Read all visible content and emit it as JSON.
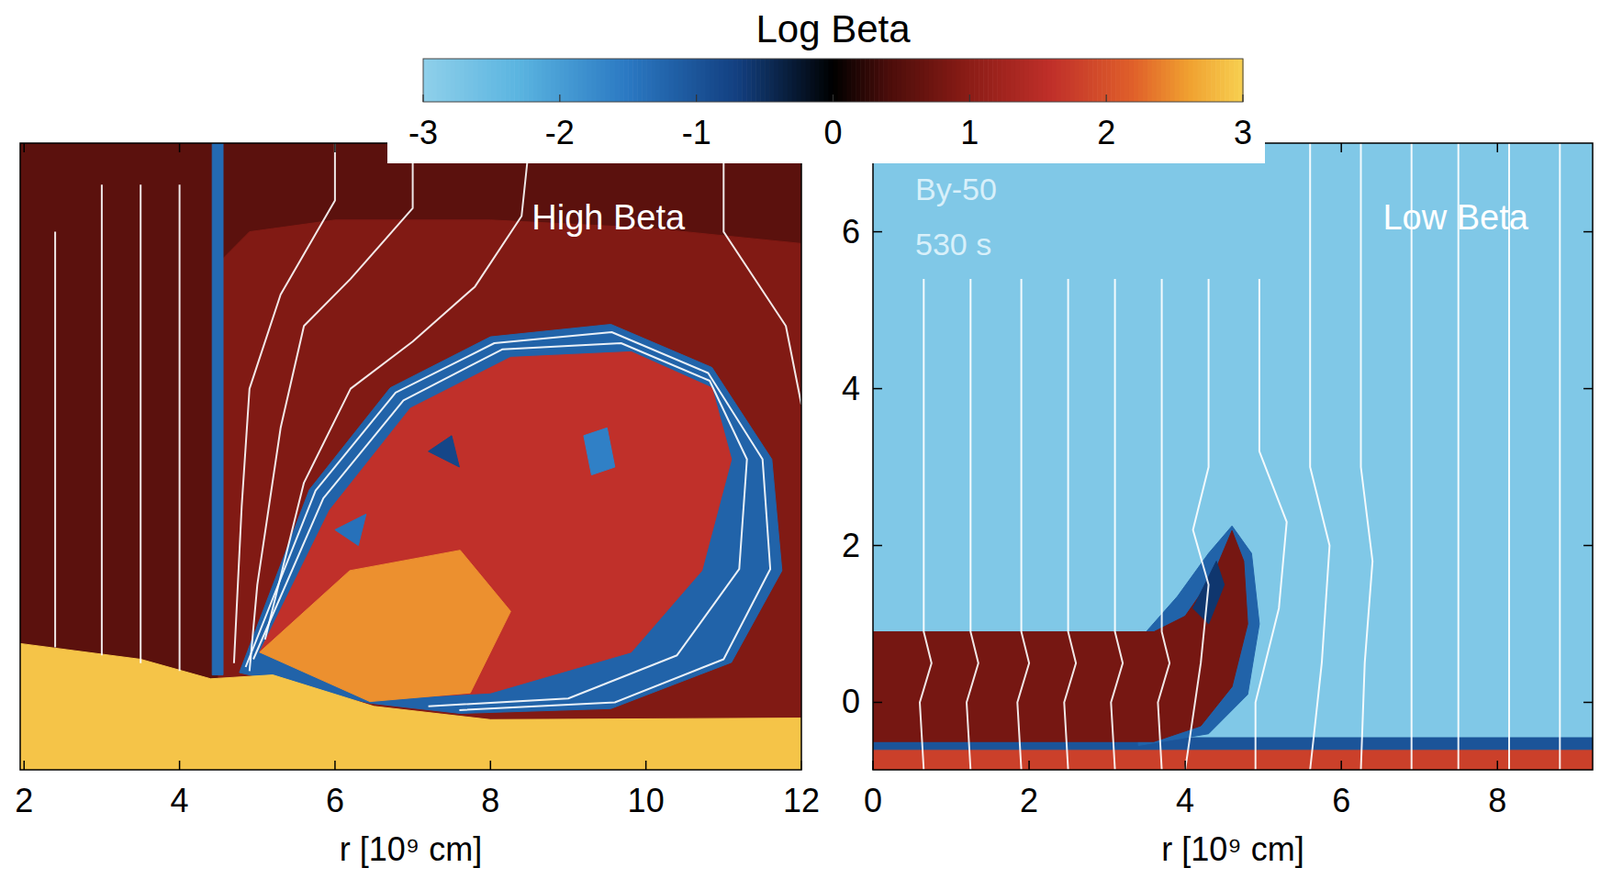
{
  "colorbar": {
    "title": "Log Beta",
    "range": [
      -3,
      3
    ],
    "ticks": [
      -3,
      -2,
      -1,
      0,
      1,
      2,
      3
    ]
  },
  "chart_data": [
    {
      "type": "heatmap",
      "title": "High Beta",
      "xlabel": "r [10⁹ cm]",
      "xlim": [
        1.95,
        12
      ],
      "xticks": [
        2,
        4,
        6,
        8,
        10,
        12
      ],
      "ylim": [
        -0.86,
        7.13
      ],
      "tick_labels": "x",
      "background": 0.55,
      "regions": [
        {
          "value": 0.9,
          "points": [
            [
              4.5,
              5.6
            ],
            [
              4.9,
              6.0
            ],
            [
              6,
              6.15
            ],
            [
              8,
              6.15
            ],
            [
              10,
              6.05
            ],
            [
              12,
              5.85
            ],
            [
              12,
              -0.86
            ],
            [
              4.5,
              -0.86
            ]
          ]
        },
        {
          "value": -1.3,
          "points": [
            [
              4.42,
              7.13
            ],
            [
              4.56,
              7.13
            ],
            [
              4.56,
              0.35
            ],
            [
              4.42,
              0.35
            ]
          ]
        },
        {
          "value": -1.2,
          "points": [
            [
              4.77,
              0.38
            ],
            [
              5.67,
              2.71
            ],
            [
              6.71,
              4.01
            ],
            [
              8.0,
              4.66
            ],
            [
              9.55,
              4.82
            ],
            [
              10.85,
              4.27
            ],
            [
              11.62,
              3.1
            ],
            [
              11.75,
              1.68
            ],
            [
              11.1,
              0.51
            ],
            [
              9.55,
              -0.08
            ],
            [
              7.61,
              -0.14
            ],
            [
              6.45,
              -0.01
            ]
          ]
        },
        {
          "value": 1.6,
          "points": [
            [
              5.03,
              0.64
            ],
            [
              5.93,
              2.45
            ],
            [
              6.97,
              3.75
            ],
            [
              8.26,
              4.4
            ],
            [
              9.81,
              4.47
            ],
            [
              10.85,
              4.01
            ],
            [
              11.1,
              3.1
            ],
            [
              10.72,
              1.68
            ],
            [
              9.81,
              0.64
            ],
            [
              8.0,
              0.12
            ],
            [
              6.71,
              0.05
            ]
          ]
        },
        {
          "value": 2.5,
          "points": [
            [
              5.03,
              0.64
            ],
            [
              6.19,
              1.68
            ],
            [
              7.61,
              1.94
            ],
            [
              8.26,
              1.16
            ],
            [
              7.74,
              0.12
            ],
            [
              6.45,
              0.01
            ]
          ]
        },
        {
          "value": -1.6,
          "points": [
            [
              9.2,
              3.4
            ],
            [
              9.5,
              3.5
            ],
            [
              9.6,
              3.0
            ],
            [
              9.3,
              2.9
            ]
          ]
        },
        {
          "value": -1.4,
          "points": [
            [
              6.0,
              2.2
            ],
            [
              6.4,
              2.4
            ],
            [
              6.3,
              2.0
            ]
          ]
        },
        {
          "value": -0.8,
          "points": [
            [
              7.2,
              3.2
            ],
            [
              7.5,
              3.4
            ],
            [
              7.6,
              3.0
            ]
          ]
        },
        {
          "value": 2.9,
          "points": [
            [
              1.95,
              -0.86
            ],
            [
              12,
              -0.86
            ],
            [
              12,
              -0.2
            ],
            [
              8,
              -0.22
            ],
            [
              6.5,
              -0.05
            ],
            [
              5.2,
              0.35
            ],
            [
              4.4,
              0.3
            ],
            [
              3.5,
              0.55
            ],
            [
              1.95,
              0.75
            ]
          ]
        }
      ],
      "field_lines": [
        [
          [
            2.4,
            6.0
          ],
          [
            2.4,
            0.7
          ]
        ],
        [
          [
            3.0,
            6.6
          ],
          [
            3.0,
            0.6
          ]
        ],
        [
          [
            3.5,
            6.6
          ],
          [
            3.5,
            0.5
          ]
        ],
        [
          [
            4.0,
            6.6
          ],
          [
            4.0,
            0.4
          ]
        ],
        [
          [
            6.0,
            7.13
          ],
          [
            6.0,
            6.4
          ],
          [
            5.3,
            5.2
          ],
          [
            4.9,
            4.0
          ],
          [
            4.8,
            2.5
          ],
          [
            4.7,
            0.5
          ]
        ],
        [
          [
            7.0,
            7.13
          ],
          [
            7.0,
            6.3
          ],
          [
            6.2,
            5.4
          ],
          [
            5.6,
            4.8
          ],
          [
            5.3,
            3.5
          ],
          [
            5.0,
            1.5
          ],
          [
            4.9,
            0.4
          ]
        ],
        [
          [
            8.5,
            7.13
          ],
          [
            8.4,
            6.2
          ],
          [
            7.8,
            5.3
          ],
          [
            7.0,
            4.6
          ],
          [
            6.2,
            4.0
          ],
          [
            5.6,
            2.8
          ],
          [
            5.1,
            0.8
          ]
        ],
        [
          [
            11.0,
            7.13
          ],
          [
            11.0,
            6.0
          ],
          [
            11.8,
            4.8
          ],
          [
            12.0,
            3.8
          ]
        ],
        [
          [
            4.85,
            0.45
          ],
          [
            5.75,
            2.7
          ],
          [
            6.78,
            3.95
          ],
          [
            8.05,
            4.58
          ],
          [
            9.56,
            4.72
          ],
          [
            10.8,
            4.2
          ],
          [
            11.5,
            3.1
          ],
          [
            11.6,
            1.7
          ],
          [
            11.0,
            0.55
          ],
          [
            9.6,
            0.0
          ],
          [
            7.6,
            -0.1
          ]
        ],
        [
          [
            4.95,
            0.55
          ],
          [
            5.85,
            2.6
          ],
          [
            6.88,
            3.85
          ],
          [
            8.15,
            4.5
          ],
          [
            9.68,
            4.58
          ],
          [
            10.82,
            4.1
          ],
          [
            11.3,
            3.1
          ],
          [
            11.2,
            1.7
          ],
          [
            10.4,
            0.6
          ],
          [
            9.0,
            0.05
          ],
          [
            7.2,
            -0.05
          ]
        ]
      ]
    },
    {
      "type": "heatmap",
      "title": "Low Beta",
      "annotations": [
        "By-50",
        "530 s"
      ],
      "xlabel": "r [10⁹ cm]",
      "xlim": [
        0,
        9.22
      ],
      "xticks": [
        0,
        2,
        4,
        6,
        8
      ],
      "ylim": [
        -0.86,
        7.13
      ],
      "yticks": [
        0,
        2,
        4,
        6
      ],
      "background": -2.8,
      "regions": [
        {
          "value": 1.8,
          "points": [
            [
              0,
              -0.6
            ],
            [
              9.22,
              -0.6
            ],
            [
              9.22,
              -0.86
            ],
            [
              0,
              -0.86
            ]
          ]
        },
        {
          "value": -1.0,
          "points": [
            [
              0,
              -0.45
            ],
            [
              9.22,
              -0.45
            ],
            [
              9.22,
              -0.6
            ],
            [
              0,
              -0.6
            ]
          ]
        },
        {
          "value": -1.2,
          "points": [
            [
              3.5,
              0.9
            ],
            [
              3.9,
              1.35
            ],
            [
              4.3,
              1.9
            ],
            [
              4.6,
              2.25
            ],
            [
              4.85,
              1.9
            ],
            [
              4.95,
              1.0
            ],
            [
              4.8,
              0.1
            ],
            [
              4.3,
              -0.4
            ],
            [
              3.4,
              -0.55
            ],
            [
              3.4,
              0.9
            ]
          ]
        },
        {
          "value": 0.8,
          "points": [
            [
              0,
              0.9
            ],
            [
              3.6,
              0.9
            ],
            [
              4.0,
              1.1
            ],
            [
              4.35,
              1.6
            ],
            [
              4.6,
              2.19
            ],
            [
              4.75,
              1.8
            ],
            [
              4.8,
              1.0
            ],
            [
              4.6,
              0.2
            ],
            [
              4.2,
              -0.3
            ],
            [
              3.6,
              -0.5
            ],
            [
              0,
              -0.5
            ]
          ]
        },
        {
          "value": -0.6,
          "points": [
            [
              4.1,
              1.2
            ],
            [
              4.4,
              1.8
            ],
            [
              4.5,
              1.5
            ],
            [
              4.3,
              1.0
            ]
          ]
        }
      ],
      "field_lines": [
        [
          [
            0.65,
            5.4
          ],
          [
            0.65,
            0.9
          ],
          [
            0.75,
            0.5
          ],
          [
            0.6,
            0
          ],
          [
            0.65,
            -0.86
          ]
        ],
        [
          [
            1.25,
            5.4
          ],
          [
            1.25,
            0.9
          ],
          [
            1.35,
            0.5
          ],
          [
            1.2,
            0
          ],
          [
            1.25,
            -0.86
          ]
        ],
        [
          [
            1.9,
            5.4
          ],
          [
            1.9,
            0.9
          ],
          [
            2.0,
            0.5
          ],
          [
            1.85,
            0
          ],
          [
            1.9,
            -0.86
          ]
        ],
        [
          [
            2.5,
            5.4
          ],
          [
            2.5,
            0.9
          ],
          [
            2.6,
            0.5
          ],
          [
            2.45,
            0
          ],
          [
            2.5,
            -0.86
          ]
        ],
        [
          [
            3.1,
            5.4
          ],
          [
            3.1,
            0.9
          ],
          [
            3.2,
            0.5
          ],
          [
            3.05,
            0
          ],
          [
            3.1,
            -0.86
          ]
        ],
        [
          [
            3.7,
            5.4
          ],
          [
            3.7,
            0.9
          ],
          [
            3.8,
            0.5
          ],
          [
            3.65,
            0
          ],
          [
            3.7,
            -0.86
          ]
        ],
        [
          [
            4.3,
            5.4
          ],
          [
            4.3,
            3.0
          ],
          [
            4.1,
            2.2
          ],
          [
            4.3,
            1.5
          ],
          [
            4.2,
            0.5
          ],
          [
            4.0,
            -0.86
          ]
        ],
        [
          [
            4.95,
            5.4
          ],
          [
            4.95,
            3.2
          ],
          [
            5.3,
            2.3
          ],
          [
            5.2,
            1.2
          ],
          [
            4.9,
            0
          ],
          [
            4.9,
            -0.86
          ]
        ],
        [
          [
            5.6,
            7.13
          ],
          [
            5.6,
            3.0
          ],
          [
            5.85,
            2.0
          ],
          [
            5.75,
            0.5
          ],
          [
            5.6,
            -0.86
          ]
        ],
        [
          [
            6.25,
            7.13
          ],
          [
            6.25,
            3.0
          ],
          [
            6.4,
            1.8
          ],
          [
            6.3,
            0.5
          ],
          [
            6.25,
            -0.86
          ]
        ],
        [
          [
            6.9,
            7.13
          ],
          [
            6.9,
            -0.86
          ]
        ],
        [
          [
            7.5,
            7.13
          ],
          [
            7.5,
            -0.86
          ]
        ],
        [
          [
            8.15,
            7.13
          ],
          [
            8.15,
            -0.86
          ]
        ],
        [
          [
            8.8,
            7.13
          ],
          [
            8.8,
            -0.86
          ]
        ]
      ]
    }
  ]
}
